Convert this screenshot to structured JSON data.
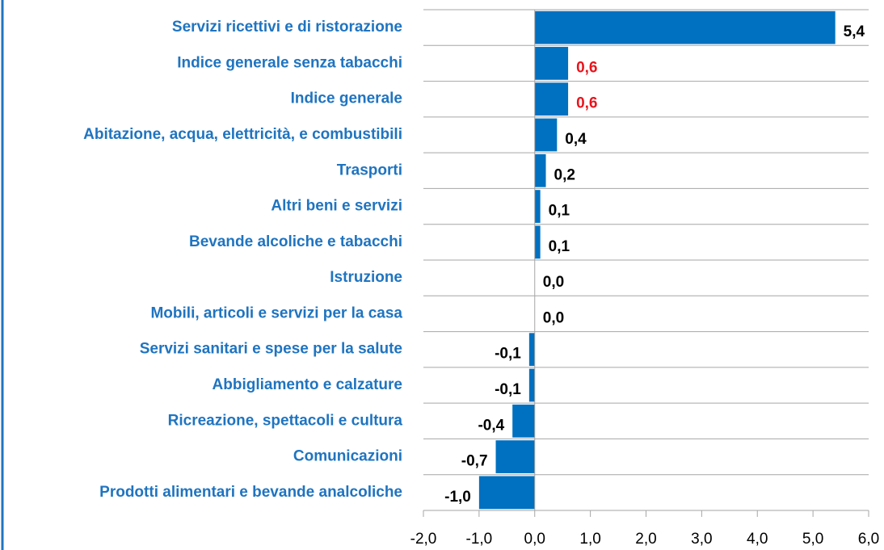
{
  "chart_data": {
    "type": "barh",
    "categories": [
      "Servizi ricettivi e di ristorazione",
      "Indice generale senza tabacchi",
      "Indice generale",
      "Abitazione, acqua, elettricità, e combustibili",
      "Trasporti",
      "Altri beni e servizi",
      "Bevande alcoliche e tabacchi",
      "Istruzione",
      "Mobili, articoli e servizi per la casa",
      "Servizi sanitari e spese per la salute",
      "Abbigliamento e calzature",
      "Ricreazione, spettacoli e cultura",
      "Comunicazioni",
      "Prodotti alimentari e bevande analcoliche"
    ],
    "values": [
      5.4,
      0.6,
      0.6,
      0.4,
      0.2,
      0.1,
      0.1,
      0.0,
      0.0,
      -0.1,
      -0.1,
      -0.4,
      -0.7,
      -1.0
    ],
    "value_labels": [
      "5,4",
      "0,6",
      "0,6",
      "0,4",
      "0,2",
      "0,1",
      "0,1",
      "0,0",
      "0,0",
      "-0,1",
      "-0,1",
      "-0,4",
      "-0,7",
      "-1,0"
    ],
    "value_label_colors": [
      "#000000",
      "#e8141c",
      "#e8141c",
      "#000000",
      "#000000",
      "#000000",
      "#000000",
      "#000000",
      "#000000",
      "#000000",
      "#000000",
      "#000000",
      "#000000",
      "#000000"
    ],
    "color": "#0070c0",
    "xlim": [
      -2,
      6
    ],
    "xticks": [
      {
        "value": -2,
        "label": "-2,0"
      },
      {
        "value": -1,
        "label": "-1,0"
      },
      {
        "value": 0,
        "label": "0,0"
      },
      {
        "value": 1,
        "label": "1,0"
      },
      {
        "value": 2,
        "label": "2,0"
      },
      {
        "value": 3,
        "label": "3,0"
      },
      {
        "value": 4,
        "label": "4,0"
      },
      {
        "value": 5,
        "label": "5,0"
      },
      {
        "value": 6,
        "label": "6,0"
      }
    ]
  }
}
